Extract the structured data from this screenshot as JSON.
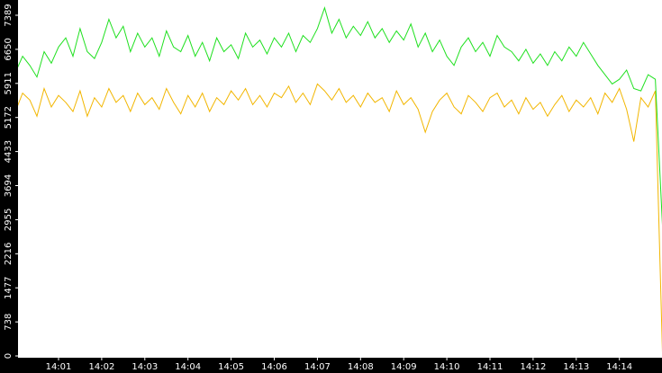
{
  "chart_data": {
    "type": "line",
    "categories": [
      null,
      null,
      null,
      null,
      null,
      null,
      "14:01",
      null,
      null,
      null,
      null,
      null,
      "14:02",
      null,
      null,
      null,
      null,
      null,
      "14:03",
      null,
      null,
      null,
      null,
      null,
      "14:04",
      null,
      null,
      null,
      null,
      null,
      "14:05",
      null,
      null,
      null,
      null,
      null,
      "14:06",
      null,
      null,
      null,
      null,
      null,
      "14:07",
      null,
      null,
      null,
      null,
      null,
      "14:08",
      null,
      null,
      null,
      null,
      null,
      "14:09",
      null,
      null,
      null,
      null,
      null,
      "14:10",
      null,
      null,
      null,
      null,
      null,
      "14:11",
      null,
      null,
      null,
      null,
      null,
      "14:12",
      null,
      null,
      null,
      null,
      null,
      "14:13",
      null,
      null,
      null,
      null,
      null,
      "14:14",
      null,
      null,
      null,
      null,
      null,
      null
    ],
    "series": [
      {
        "color": "#1fe01f",
        "values": [
          6150,
          6500,
          6300,
          6050,
          6600,
          6350,
          6700,
          6900,
          6500,
          7100,
          6600,
          6450,
          6800,
          7300,
          6900,
          7150,
          6600,
          7000,
          6700,
          6900,
          6500,
          7050,
          6700,
          6600,
          6950,
          6500,
          6800,
          6400,
          6900,
          6600,
          6750,
          6450,
          7000,
          6700,
          6850,
          6550,
          6900,
          6700,
          7000,
          6600,
          6950,
          6800,
          7100,
          7550,
          7000,
          7300,
          6900,
          7150,
          6950,
          7250,
          6900,
          7100,
          6800,
          7050,
          6850,
          7200,
          6700,
          7000,
          6600,
          6850,
          6500,
          6300,
          6700,
          6900,
          6600,
          6800,
          6500,
          6950,
          6700,
          6600,
          6400,
          6650,
          6350,
          6550,
          6300,
          6600,
          6400,
          6700,
          6500,
          6800,
          6550,
          6300,
          6100,
          5900,
          6000,
          6200,
          5800,
          5750,
          6100,
          6000,
          2800
        ]
      },
      {
        "color": "#f2b600",
        "values": [
          5300,
          5700,
          5550,
          5200,
          5800,
          5400,
          5650,
          5500,
          5300,
          5750,
          5200,
          5600,
          5400,
          5800,
          5500,
          5650,
          5300,
          5700,
          5450,
          5600,
          5350,
          5800,
          5500,
          5250,
          5650,
          5400,
          5700,
          5300,
          5600,
          5450,
          5750,
          5550,
          5800,
          5450,
          5650,
          5400,
          5700,
          5600,
          5850,
          5500,
          5700,
          5450,
          5900,
          5750,
          5550,
          5800,
          5500,
          5650,
          5400,
          5700,
          5500,
          5600,
          5300,
          5750,
          5450,
          5600,
          5350,
          4850,
          5300,
          5550,
          5700,
          5400,
          5250,
          5650,
          5500,
          5300,
          5600,
          5700,
          5400,
          5550,
          5250,
          5600,
          5350,
          5500,
          5200,
          5450,
          5650,
          5300,
          5550,
          5400,
          5600,
          5250,
          5700,
          5500,
          5800,
          5350,
          4650,
          5600,
          5400,
          5750,
          0
        ]
      }
    ],
    "ylim": [
      0,
      7720
    ],
    "yticks": [
      0,
      738,
      1477,
      2216,
      2955,
      3694,
      4433,
      5172,
      5911,
      6650,
      7389
    ]
  }
}
